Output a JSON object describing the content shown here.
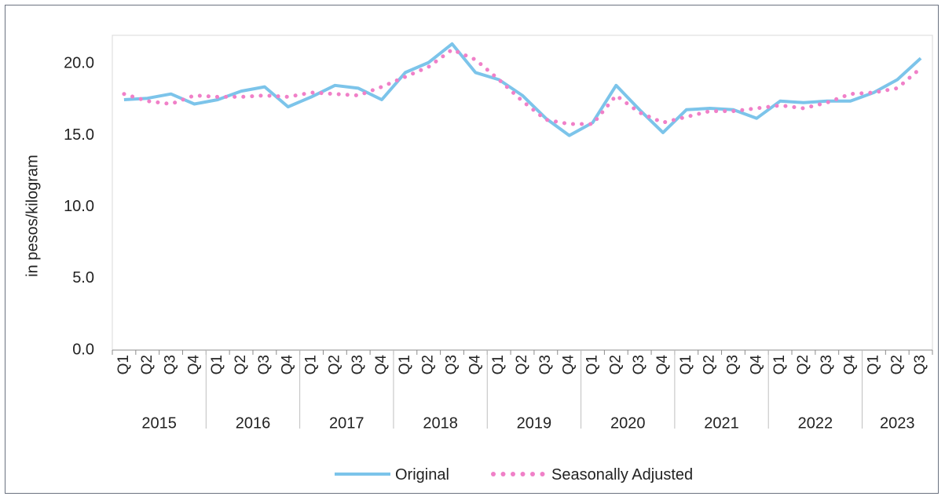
{
  "chart_data": {
    "type": "line",
    "ylabel": "in pesos/kilogram",
    "xlabel": "",
    "ylim": [
      0,
      22
    ],
    "yticks": [
      "0.0",
      "5.0",
      "10.0",
      "15.0",
      "20.0"
    ],
    "yticks_values": [
      0,
      5,
      10,
      15,
      20
    ],
    "grid": false,
    "legend_position": "bottom",
    "categories": [
      "Q1",
      "Q2",
      "Q3",
      "Q4",
      "Q1",
      "Q2",
      "Q3",
      "Q4",
      "Q1",
      "Q2",
      "Q3",
      "Q4",
      "Q1",
      "Q2",
      "Q3",
      "Q4",
      "Q1",
      "Q2",
      "Q3",
      "Q4",
      "Q1",
      "Q2",
      "Q3",
      "Q4",
      "Q1",
      "Q2",
      "Q3",
      "Q4",
      "Q1",
      "Q2",
      "Q3",
      "Q4",
      "Q1",
      "Q2",
      "Q3"
    ],
    "years": [
      "2015",
      "2016",
      "2017",
      "2018",
      "2019",
      "2020",
      "2021",
      "2022",
      "2023"
    ],
    "series": [
      {
        "name": "Original",
        "color": "#7cc4ea",
        "style": "solid",
        "values": [
          17.5,
          17.6,
          17.9,
          17.2,
          17.5,
          18.1,
          18.4,
          17.0,
          17.7,
          18.5,
          18.3,
          17.5,
          19.4,
          20.1,
          21.4,
          19.4,
          18.9,
          17.8,
          16.2,
          15.0,
          15.9,
          18.5,
          16.8,
          15.2,
          16.8,
          16.9,
          16.8,
          16.2,
          17.4,
          17.3,
          17.4,
          17.4,
          18.0,
          18.9,
          20.4
        ]
      },
      {
        "name": "Seasonally Adjusted",
        "color": "#f080c8",
        "style": "dotted",
        "values": [
          17.9,
          17.4,
          17.2,
          17.8,
          17.7,
          17.7,
          17.8,
          17.7,
          18.0,
          17.9,
          17.8,
          18.4,
          19.1,
          19.8,
          21.0,
          20.3,
          18.9,
          17.4,
          16.1,
          15.8,
          15.8,
          17.8,
          16.6,
          15.9,
          16.3,
          16.7,
          16.7,
          16.9,
          17.1,
          16.9,
          17.3,
          17.9,
          18.0,
          18.3,
          19.7
        ]
      }
    ]
  }
}
